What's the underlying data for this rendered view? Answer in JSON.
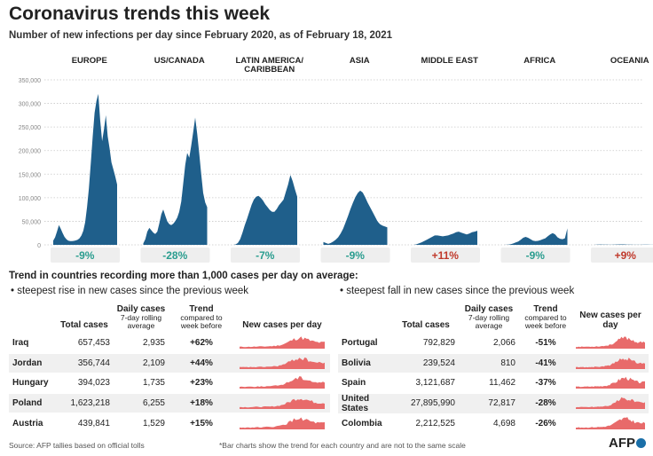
{
  "title": "Coronavirus trends this week",
  "subtitle": "Number of new infections per day since February 2020, as of February 18, 2021",
  "chart_data": {
    "type": "area",
    "y_ticks": [
      "0",
      "50,000",
      "100,000",
      "150,000",
      "200,000",
      "250,000",
      "300,000",
      "350,000"
    ],
    "ylim": [
      0,
      350000
    ],
    "series": [
      {
        "name": "EUROPE",
        "trend": "-9%",
        "shape": [
          9000,
          16000,
          28000,
          42000,
          34000,
          25000,
          17000,
          12000,
          9000,
          8000,
          8000,
          8500,
          9500,
          11000,
          14000,
          20000,
          30000,
          48000,
          80000,
          120000,
          175000,
          230000,
          280000,
          305000,
          320000,
          265000,
          220000,
          245000,
          275000,
          230000,
          205000,
          175000,
          160000,
          145000,
          128000
        ]
      },
      {
        "name": "US/CANADA",
        "trend": "-28%",
        "shape": [
          3000,
          12000,
          28000,
          36000,
          31000,
          26000,
          23000,
          28000,
          45000,
          65000,
          75000,
          62000,
          50000,
          44000,
          42000,
          45000,
          50000,
          58000,
          70000,
          92000,
          130000,
          170000,
          195000,
          185000,
          210000,
          240000,
          270000,
          235000,
          195000,
          150000,
          110000,
          90000,
          80000
        ]
      },
      {
        "name": "LATIN AMERICA/\nCARIBBEAN",
        "trend": "-7%",
        "shape": [
          0,
          1000,
          4000,
          12000,
          26000,
          42000,
          55000,
          70000,
          85000,
          96000,
          102000,
          104000,
          100000,
          94000,
          86000,
          80000,
          74000,
          70000,
          70000,
          76000,
          84000,
          90000,
          96000,
          112000,
          128000,
          148000,
          135000,
          118000,
          102000
        ]
      },
      {
        "name": "ASIA",
        "trend": "-9%",
        "shape": [
          6000,
          4000,
          2000,
          4000,
          7000,
          11000,
          16000,
          24000,
          34000,
          47000,
          61000,
          76000,
          89000,
          101000,
          110000,
          115000,
          111000,
          101000,
          90000,
          80000,
          70000,
          60000,
          50000,
          44000,
          41000,
          39000,
          37000
        ]
      },
      {
        "name": "MIDDLE EAST",
        "trend": "+11%",
        "shape": [
          0,
          1000,
          3000,
          5000,
          8000,
          11000,
          14000,
          17000,
          20000,
          20000,
          19000,
          18000,
          19000,
          20000,
          22000,
          24000,
          27000,
          28000,
          26000,
          24000,
          22000,
          24000,
          27000,
          28000,
          30000
        ]
      },
      {
        "name": "AFRICA",
        "trend": "-9%",
        "shape": [
          0,
          200,
          500,
          1500,
          3000,
          5000,
          7000,
          11000,
          15000,
          17000,
          15000,
          12000,
          9000,
          8000,
          8500,
          10000,
          12000,
          14000,
          18000,
          22000,
          25000,
          22000,
          16000,
          13000,
          12000,
          14000,
          35000
        ]
      },
      {
        "name": "OCEANIA",
        "trend": "+9%",
        "shape": [
          0,
          400,
          700,
          500,
          300,
          200,
          300,
          700,
          1000,
          900,
          600,
          300,
          200,
          200,
          200,
          300,
          300,
          200,
          200,
          200
        ]
      }
    ]
  },
  "section_title": "Trend in countries recording more than 1,000 cases per day on average:",
  "rise_heading": "• steepest rise in new cases since the previous week",
  "fall_heading": "• steepest fall in new cases since the previous week",
  "table_headers": {
    "total": "Total cases",
    "daily": "Daily cases",
    "daily_sub": "7-day rolling average",
    "trend": "Trend",
    "trend_sub": "compared to week before",
    "spark": "New cases per day"
  },
  "rise": [
    {
      "country": "Iraq",
      "total": "657,453",
      "daily": "2,935",
      "trend": "+62%"
    },
    {
      "country": "Jordan",
      "total": "356,744",
      "daily": "2,109",
      "trend": "+44%"
    },
    {
      "country": "Hungary",
      "total": "394,023",
      "daily": "1,735",
      "trend": "+23%"
    },
    {
      "country": "Poland",
      "total": "1,623,218",
      "daily": "6,255",
      "trend": "+18%"
    },
    {
      "country": "Austria",
      "total": "439,841",
      "daily": "1,529",
      "trend": "+15%"
    }
  ],
  "fall": [
    {
      "country": "Portugal",
      "total": "792,829",
      "daily": "2,066",
      "trend": "-51%"
    },
    {
      "country": "Bolivia",
      "total": "239,524",
      "daily": "810",
      "trend": "-41%"
    },
    {
      "country": "Spain",
      "total": "3,121,687",
      "daily": "11,462",
      "trend": "-37%"
    },
    {
      "country": "United States",
      "total": "27,895,990",
      "daily": "72,817",
      "trend": "-28%"
    },
    {
      "country": "Colombia",
      "total": "2,212,525",
      "daily": "4,698",
      "trend": "-26%"
    }
  ],
  "source": "Source: AFP tallies based on official tolls",
  "footnote": "*Bar charts show the trend for each country and are not to the same scale",
  "logo": "AFP",
  "colors": {
    "bar": "#1f5f8b",
    "down": "#2a9d8f",
    "up": "#c0392b",
    "spark": "#e86a6a",
    "pill": "#eeeeee"
  }
}
